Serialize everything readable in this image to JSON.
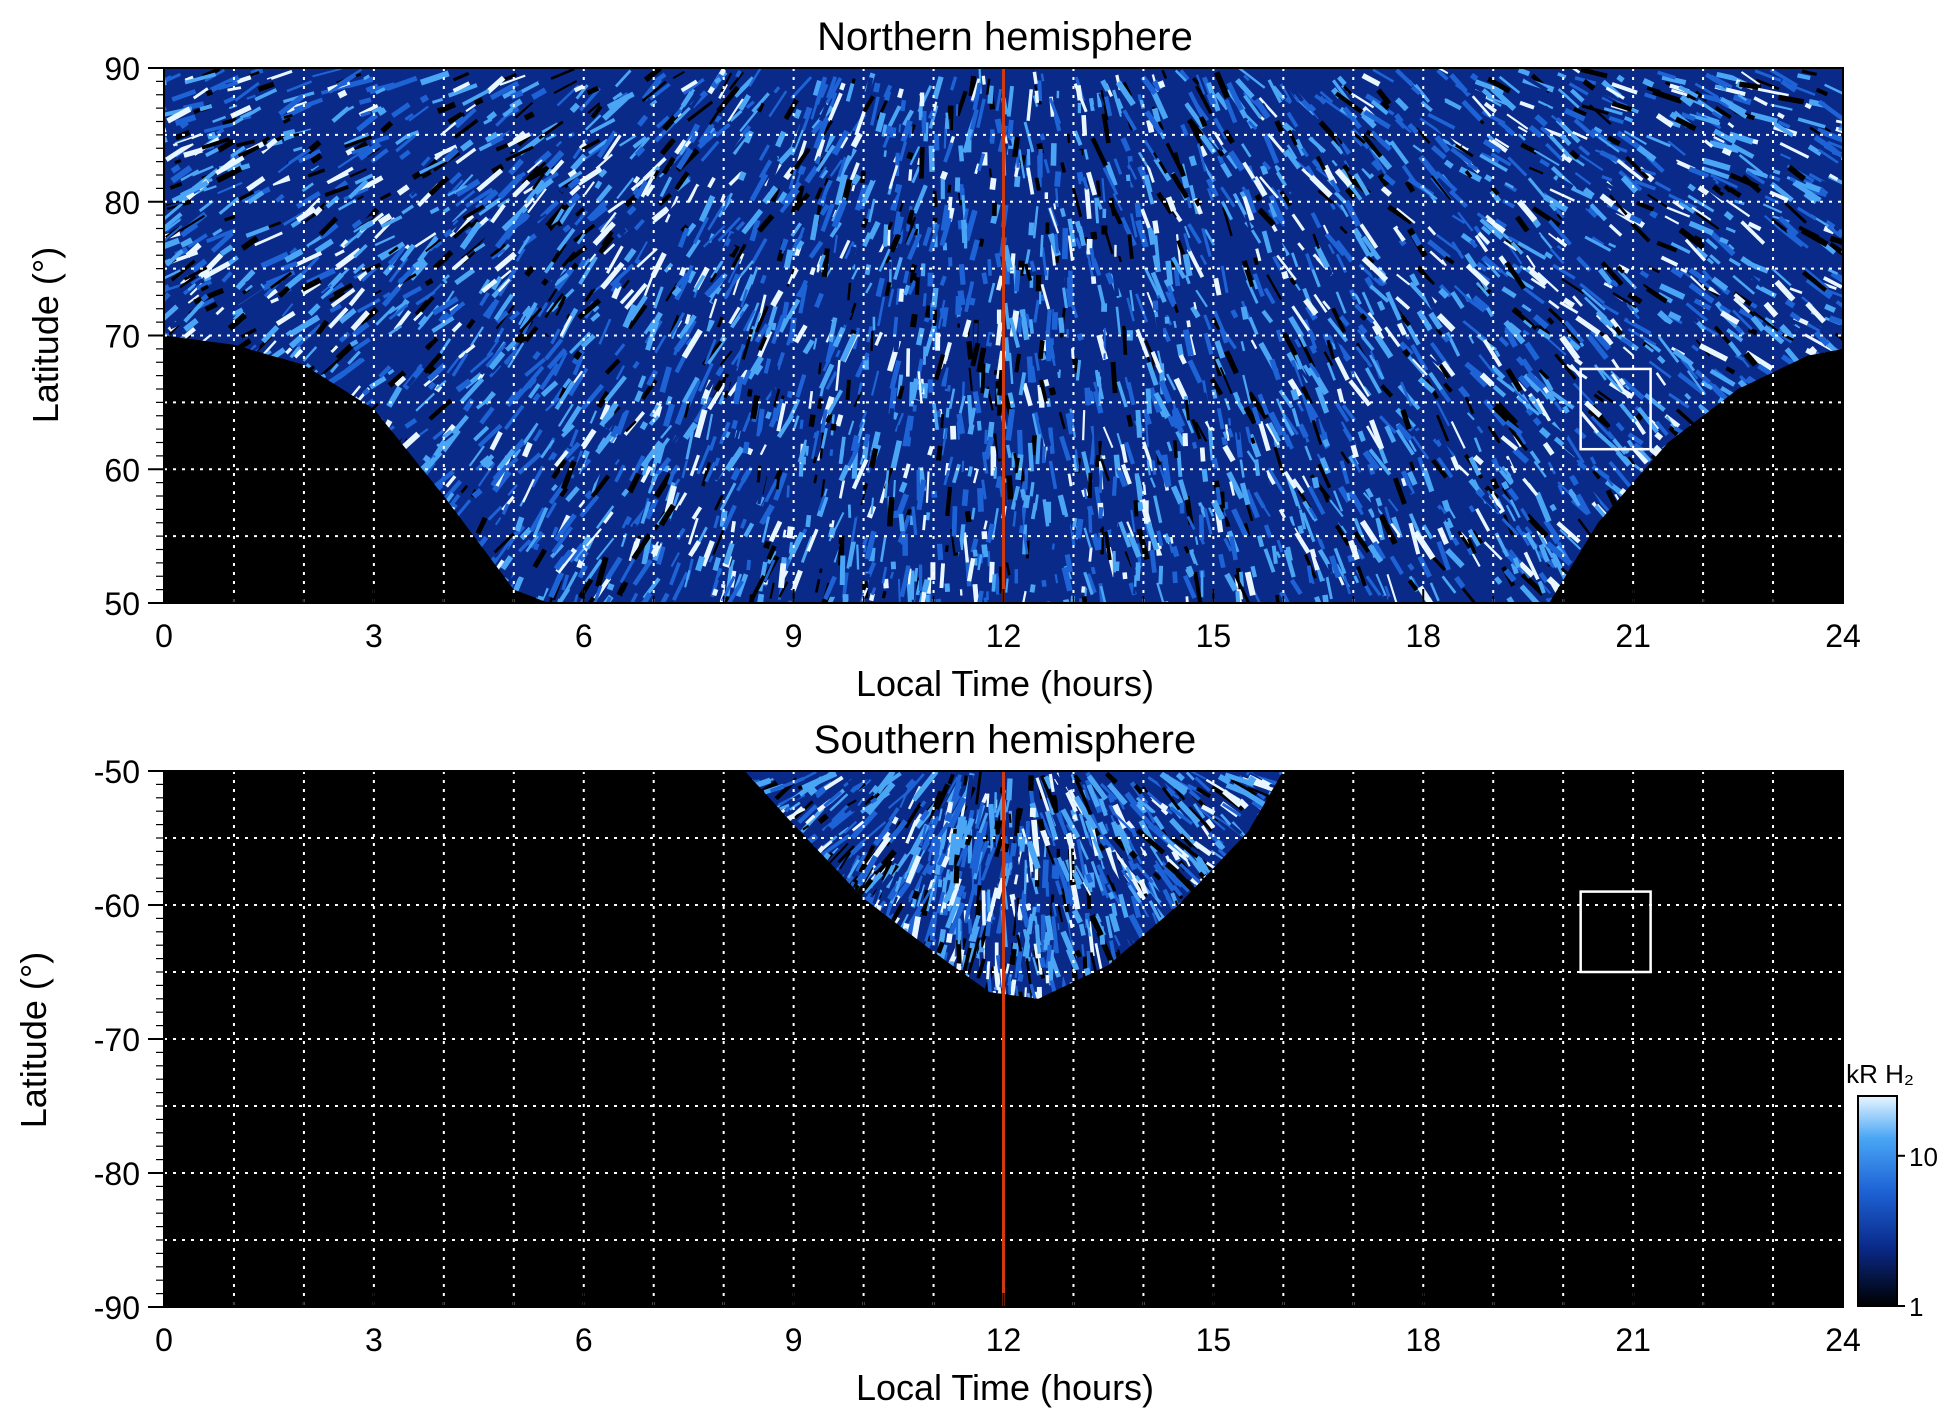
{
  "chart_data": [
    {
      "type": "heatmap",
      "title": "Northern hemisphere",
      "xlabel": "Local Time (hours)",
      "ylabel": "Latitude (°)",
      "xlim": [
        0,
        24
      ],
      "ylim": [
        50,
        90
      ],
      "x_ticks": [
        0,
        3,
        6,
        9,
        12,
        15,
        18,
        21,
        24
      ],
      "y_ticks": [
        50,
        60,
        70,
        80,
        90
      ],
      "grid": true,
      "colormap": [
        "#000000",
        "#0a2a8a",
        "#1e63d6",
        "#4aa6f5",
        "#e8f6ff"
      ],
      "observed_boundary": [
        {
          "lt": 0,
          "lat_min": 70
        },
        {
          "lt": 1,
          "lat_min": 69.3
        },
        {
          "lt": 2,
          "lat_min": 67.8
        },
        {
          "lt": 3,
          "lat_min": 64.5
        },
        {
          "lt": 4,
          "lat_min": 58
        },
        {
          "lt": 5,
          "lat_min": 51
        },
        {
          "lt": 5.5,
          "lat_min": 50
        },
        {
          "lt": 19.8,
          "lat_min": 50
        },
        {
          "lt": 20.5,
          "lat_min": 56
        },
        {
          "lt": 21.5,
          "lat_min": 62
        },
        {
          "lt": 22.5,
          "lat_min": 66
        },
        {
          "lt": 23.5,
          "lat_min": 68.5
        },
        {
          "lt": 24,
          "lat_min": 69
        }
      ],
      "reference_line": {
        "x": 12,
        "color": "#d03a10"
      },
      "box": {
        "x": [
          20.25,
          21.25
        ],
        "y": [
          61.5,
          67.5
        ]
      }
    },
    {
      "type": "heatmap",
      "title": "Southern hemisphere",
      "xlabel": "Local Time (hours)",
      "ylabel": "Latitude (°)",
      "xlim": [
        0,
        24
      ],
      "ylim": [
        -90,
        -50
      ],
      "x_ticks": [
        0,
        3,
        6,
        9,
        12,
        15,
        18,
        21,
        24
      ],
      "y_ticks": [
        -90,
        -80,
        -70,
        -60,
        -50
      ],
      "grid": true,
      "colormap": [
        "#000000",
        "#0a2a8a",
        "#1e63d6",
        "#4aa6f5",
        "#e8f6ff"
      ],
      "observed_boundary": [
        {
          "lt": 8.3,
          "lat_max": -50
        },
        {
          "lt": 9,
          "lat_max": -54
        },
        {
          "lt": 10,
          "lat_max": -59.5
        },
        {
          "lt": 11,
          "lat_max": -63.5
        },
        {
          "lt": 11.8,
          "lat_max": -66.5
        },
        {
          "lt": 12.5,
          "lat_max": -67
        },
        {
          "lt": 13.5,
          "lat_max": -64.5
        },
        {
          "lt": 14.5,
          "lat_max": -60
        },
        {
          "lt": 15.5,
          "lat_max": -54.5
        },
        {
          "lt": 16,
          "lat_max": -50
        }
      ],
      "reference_line": {
        "x": 12,
        "color": "#d03a10"
      },
      "box": {
        "x": [
          20.25,
          21.25
        ],
        "y": [
          -65,
          -59
        ]
      }
    }
  ],
  "colorbar": {
    "label": "kR H₂",
    "scale": "log",
    "range": [
      1,
      25
    ],
    "ticks": [
      {
        "value": 10,
        "label": "10"
      },
      {
        "value": 1,
        "label": "1"
      }
    ]
  }
}
